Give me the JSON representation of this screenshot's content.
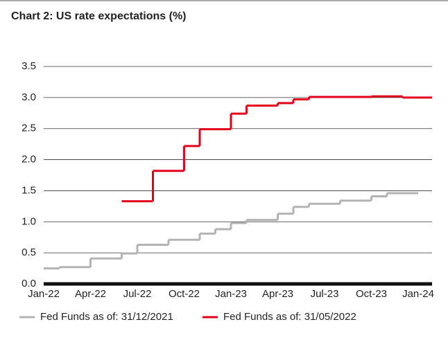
{
  "chart_data": {
    "type": "step-line",
    "title": "Chart 2: US rate expectations (%)",
    "categories": [
      "Jan-22",
      null,
      null,
      "Apr-22",
      null,
      null,
      "Jul-22",
      null,
      null,
      "Oct-22",
      null,
      null,
      "Jan-23",
      null,
      null,
      "Apr-23",
      null,
      null,
      "Jul-23",
      null,
      null,
      "Oct-23",
      null,
      null,
      "Jan-24"
    ],
    "series": [
      {
        "name": "Fed Funds as of: 31/12/2021",
        "color": "#b3b3b3",
        "values": [
          0.25,
          0.27,
          0.27,
          0.41,
          0.41,
          0.49,
          0.63,
          0.63,
          0.71,
          0.71,
          0.81,
          0.88,
          0.98,
          1.03,
          1.03,
          1.13,
          1.24,
          1.29,
          1.29,
          1.34,
          1.34,
          1.41,
          1.46,
          1.46,
          null
        ]
      },
      {
        "name": "Fed Funds as of: 31/05/2022",
        "color": "#e3001b",
        "values": [
          null,
          null,
          null,
          null,
          null,
          1.33,
          1.33,
          1.82,
          1.82,
          2.22,
          2.49,
          2.49,
          2.74,
          2.87,
          2.87,
          2.91,
          2.97,
          3.01,
          3.01,
          3.01,
          3.01,
          3.02,
          3.02,
          3.0,
          3.0
        ]
      }
    ],
    "ylim": [
      0,
      3.5
    ],
    "yticks": [
      {
        "value": 0,
        "label": "0.0"
      },
      0.5,
      {
        "value": 1,
        "label": "1.0"
      },
      1.5,
      {
        "value": 2,
        "label": "2.0"
      },
      2.5,
      {
        "value": 3,
        "label": "3.0"
      },
      3.5
    ],
    "grid": true,
    "legend": "bottom"
  }
}
